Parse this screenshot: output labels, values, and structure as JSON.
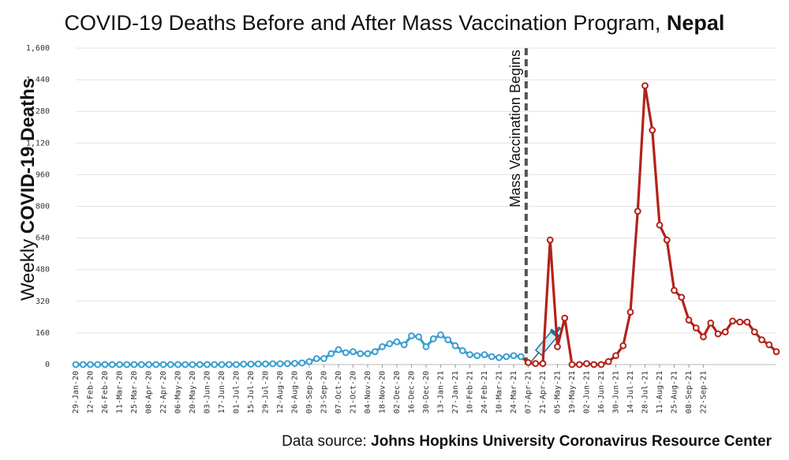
{
  "title": {
    "main": "COVID-19 Deaths Before and After Mass Vaccination Program,",
    "country": "Nepal"
  },
  "ylabel": {
    "prefix": "Weekly",
    "bold": "COVID-19 Deaths"
  },
  "source": {
    "prefix": "Data source:",
    "bold": "Johns Hopkins University Coronavirus Resource Center"
  },
  "chart_data": {
    "type": "line",
    "title": "COVID-19 Deaths Before and After Mass Vaccination Program, Nepal",
    "xlabel": "",
    "ylabel": "Weekly COVID-19 Deaths",
    "ylim": [
      0,
      1600
    ],
    "yticks": [
      0,
      160,
      320,
      480,
      640,
      800,
      960,
      1120,
      1280,
      1440,
      1600
    ],
    "ytick_labels": [
      "0",
      "160",
      "320",
      "480",
      "640",
      "800",
      "960",
      "1,120",
      "1,280",
      "1,440",
      "1,600"
    ],
    "grid": true,
    "x_tick_labels": [
      "29-Jan-20",
      "12-Feb-20",
      "26-Feb-20",
      "11-Mar-20",
      "25-Mar-20",
      "08-Apr-20",
      "22-Apr-20",
      "06-May-20",
      "20-May-20",
      "03-Jun-20",
      "17-Jun-20",
      "01-Jul-20",
      "15-Jul-20",
      "29-Jul-20",
      "12-Aug-20",
      "26-Aug-20",
      "09-Sep-20",
      "23-Sep-20",
      "07-Oct-20",
      "21-Oct-20",
      "04-Nov-20",
      "18-Nov-20",
      "02-Dec-20",
      "16-Dec-20",
      "30-Dec-20",
      "13-Jan-21",
      "27-Jan-21",
      "10-Feb-21",
      "24-Feb-21",
      "10-Mar-21",
      "24-Mar-21",
      "07-Apr-21",
      "21-Apr-21",
      "05-May-21",
      "19-May-21",
      "02-Jun-21",
      "16-Jun-21",
      "30-Jun-21",
      "14-Jul-21",
      "28-Jul-21",
      "11-Aug-21",
      "25-Aug-21",
      "08-Sep-21",
      "22-Sep-21"
    ],
    "annotation": "Mass Vaccination Begins",
    "series": [
      {
        "color": "#3a9fd0",
        "values": [
          0,
          0,
          0,
          0,
          0,
          0,
          0,
          0,
          0,
          0,
          0,
          0,
          0,
          0,
          0,
          0,
          0,
          0,
          0,
          0,
          0,
          0,
          0,
          2,
          2,
          3,
          3,
          4,
          4,
          5,
          6,
          8,
          15,
          30,
          30,
          55,
          75,
          60,
          65,
          55,
          55,
          65,
          90,
          105,
          115,
          100,
          145,
          140,
          90,
          130,
          150,
          125,
          95,
          70,
          50,
          45,
          50,
          40,
          35,
          40,
          45,
          40
        ]
      },
      {
        "color": "#b3221b",
        "values": [
          10,
          5,
          5,
          630,
          90,
          235,
          0,
          0,
          5,
          0,
          0,
          15,
          45,
          95,
          265,
          775,
          1410,
          1185,
          705,
          630,
          375,
          340,
          225,
          185,
          140,
          210,
          155,
          165,
          220,
          215,
          215,
          165,
          125,
          100,
          65
        ]
      }
    ]
  }
}
